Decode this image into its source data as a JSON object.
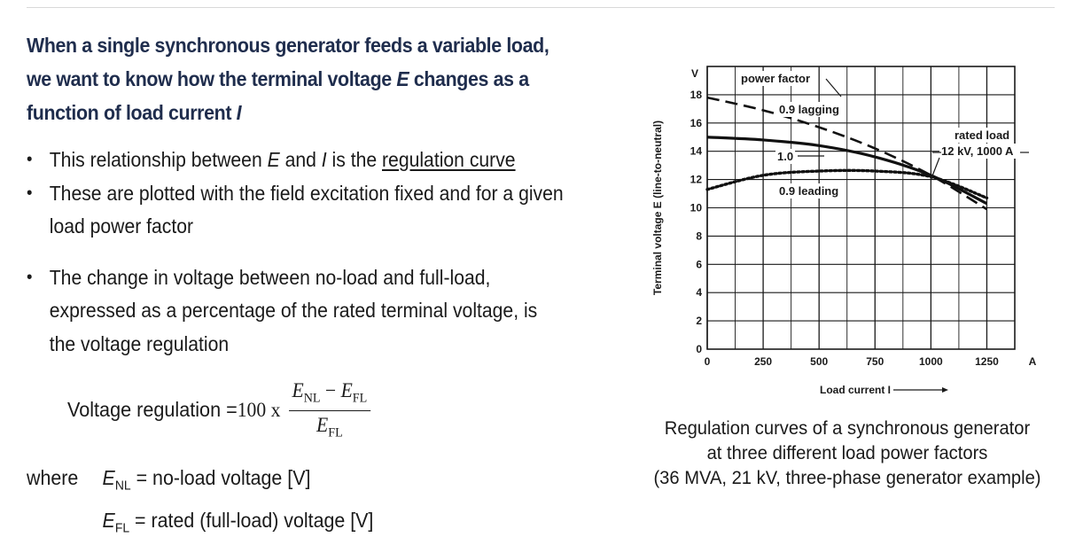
{
  "heading": {
    "part1": "When a single synchronous generator feeds a variable load, we want to know how the terminal voltage ",
    "E": "E",
    "part2": " changes as a function of load current ",
    "I": "I"
  },
  "bullets": {
    "b1_pre": "This relationship between ",
    "b1_E": "E",
    "b1_mid": " and ",
    "b1_I": "I",
    "b1_mid2": " is the ",
    "b1_link": "regulation curve",
    "b2": "These are plotted with the field excitation fixed and for a given load power factor",
    "b3": "The change in voltage between no-load and full-load, expressed as a percentage of the rated terminal voltage, is the voltage regulation"
  },
  "formula": {
    "label": "Voltage regulation = ",
    "factor": "100 x",
    "num_E1": "E",
    "num_sub1": "NL",
    "minus": " − ",
    "num_E2": "E",
    "num_sub2": "FL",
    "den_E": "E",
    "den_sub": "FL"
  },
  "where": {
    "word": "where",
    "E": "E",
    "nl_sub": "NL",
    "nl_text": " = no-load voltage [V]",
    "fl_sub": "FL",
    "fl_text": " = rated (full-load) voltage [V]"
  },
  "caption": {
    "line1": "Regulation curves of a synchronous generator",
    "line2": "at three different load power factors",
    "line3": "(36 MVA, 21 kV, three-phase generator example)"
  },
  "chart_data": {
    "type": "line",
    "xlabel": "Load current I",
    "ylabel": "Terminal voltage E (line-to-neutral)",
    "x_unit": "A",
    "y_unit": "V",
    "xlim": [
      0,
      1375
    ],
    "ylim": [
      0,
      20
    ],
    "x_ticks": [
      "0",
      "250",
      "500",
      "750",
      "1000",
      "1250"
    ],
    "y_ticks": [
      "0",
      "2",
      "4",
      "6",
      "8",
      "10",
      "12",
      "14",
      "16",
      "18"
    ],
    "grid": true,
    "series": [
      {
        "name": "0.9 lagging",
        "style": "dashed",
        "x": [
          0,
          250,
          500,
          750,
          1000,
          1250
        ],
        "y": [
          17.8,
          16.9,
          15.7,
          14.2,
          12.3,
          9.9
        ]
      },
      {
        "name": "1.0",
        "style": "solid",
        "x": [
          0,
          250,
          500,
          750,
          1000,
          1250
        ],
        "y": [
          15.0,
          14.8,
          14.4,
          13.6,
          12.3,
          10.3
        ]
      },
      {
        "name": "0.9 leading",
        "style": "dotted",
        "x": [
          0,
          250,
          500,
          750,
          1000,
          1250
        ],
        "y": [
          11.3,
          12.3,
          12.6,
          12.6,
          12.2,
          10.7
        ]
      }
    ],
    "annotations": {
      "pf": "power factor",
      "lagging": "0.9 lagging",
      "unity": "1.0",
      "leading": "0.9 leading",
      "rated1": "rated load",
      "rated2": "12 kV, 1000 A"
    },
    "rated_point": {
      "x": 1000,
      "y": 12
    }
  }
}
